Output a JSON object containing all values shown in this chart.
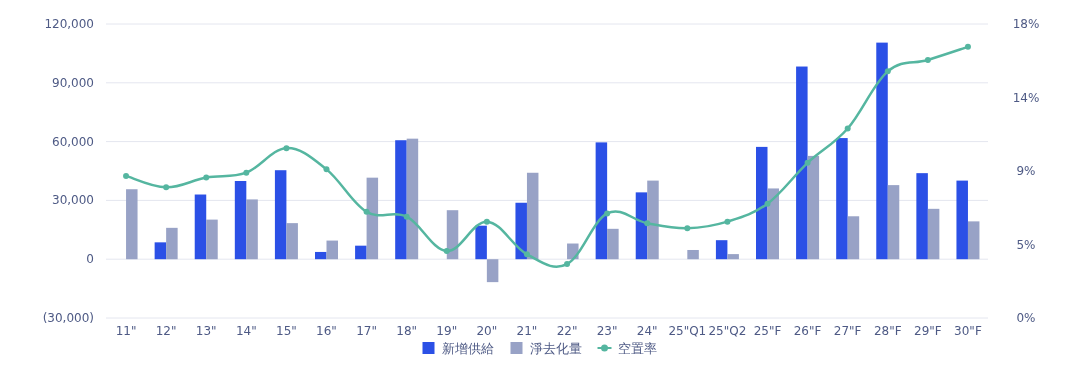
{
  "chart_data": {
    "type": "bar",
    "categories": [
      "11\"",
      "12\"",
      "13\"",
      "14\"",
      "15\"",
      "16\"",
      "17\"",
      "18\"",
      "19\"",
      "20\"",
      "21\"",
      "22\"",
      "23\"",
      "24\"",
      "25\"Q1",
      "25\"Q2",
      "25\"F",
      "26\"F",
      "27\"F",
      "28\"F",
      "29\"F",
      "30\"F"
    ],
    "series": [
      {
        "name": "新增供給",
        "color": "#2b50e6",
        "values": [
          null,
          8600,
          33000,
          39900,
          45400,
          3700,
          6900,
          60700,
          null,
          17100,
          28800,
          null,
          59600,
          34100,
          null,
          9700,
          57300,
          98300,
          61800,
          110500,
          43900,
          40100
        ]
      },
      {
        "name": "淨去化量",
        "color": "#98a2c6",
        "values": [
          35700,
          16000,
          20200,
          30500,
          18400,
          9500,
          41600,
          61500,
          25000,
          -11700,
          44100,
          8000,
          15500,
          40100,
          4700,
          2600,
          36100,
          52700,
          21900,
          37800,
          25700,
          19300
        ]
      },
      {
        "name": "空置率",
        "type": "line",
        "axis": "y2",
        "color": "#55b6a0",
        "marker": "circle",
        "line_style": "solid",
        "values": [
          8.7,
          8.0,
          8.6,
          8.9,
          10.4,
          9.1,
          6.5,
          6.2,
          4.1,
          5.9,
          3.9,
          3.3,
          6.4,
          5.8,
          5.5,
          5.9,
          7.0,
          9.5,
          11.6,
          15.1,
          15.8,
          16.6
        ]
      }
    ],
    "ylim": [
      -30000,
      120000
    ],
    "yticks": [
      {
        "value": -30000,
        "label": "(30,000)"
      },
      {
        "value": 0,
        "label": "0"
      },
      {
        "value": 30000,
        "label": "30,000"
      },
      {
        "value": 60000,
        "label": "60,000"
      },
      {
        "value": 90000,
        "label": "90,000"
      },
      {
        "value": 120000,
        "label": "120,000"
      }
    ],
    "y2lim": [
      0,
      18
    ],
    "y2ticks": [
      {
        "value": 0,
        "label": "0%"
      },
      {
        "value": 4.5,
        "label": "5%"
      },
      {
        "value": 9,
        "label": "9%"
      },
      {
        "value": 13.5,
        "label": "14%"
      },
      {
        "value": 18,
        "label": "18%"
      }
    ],
    "grid": "y",
    "legend": "bottom"
  }
}
